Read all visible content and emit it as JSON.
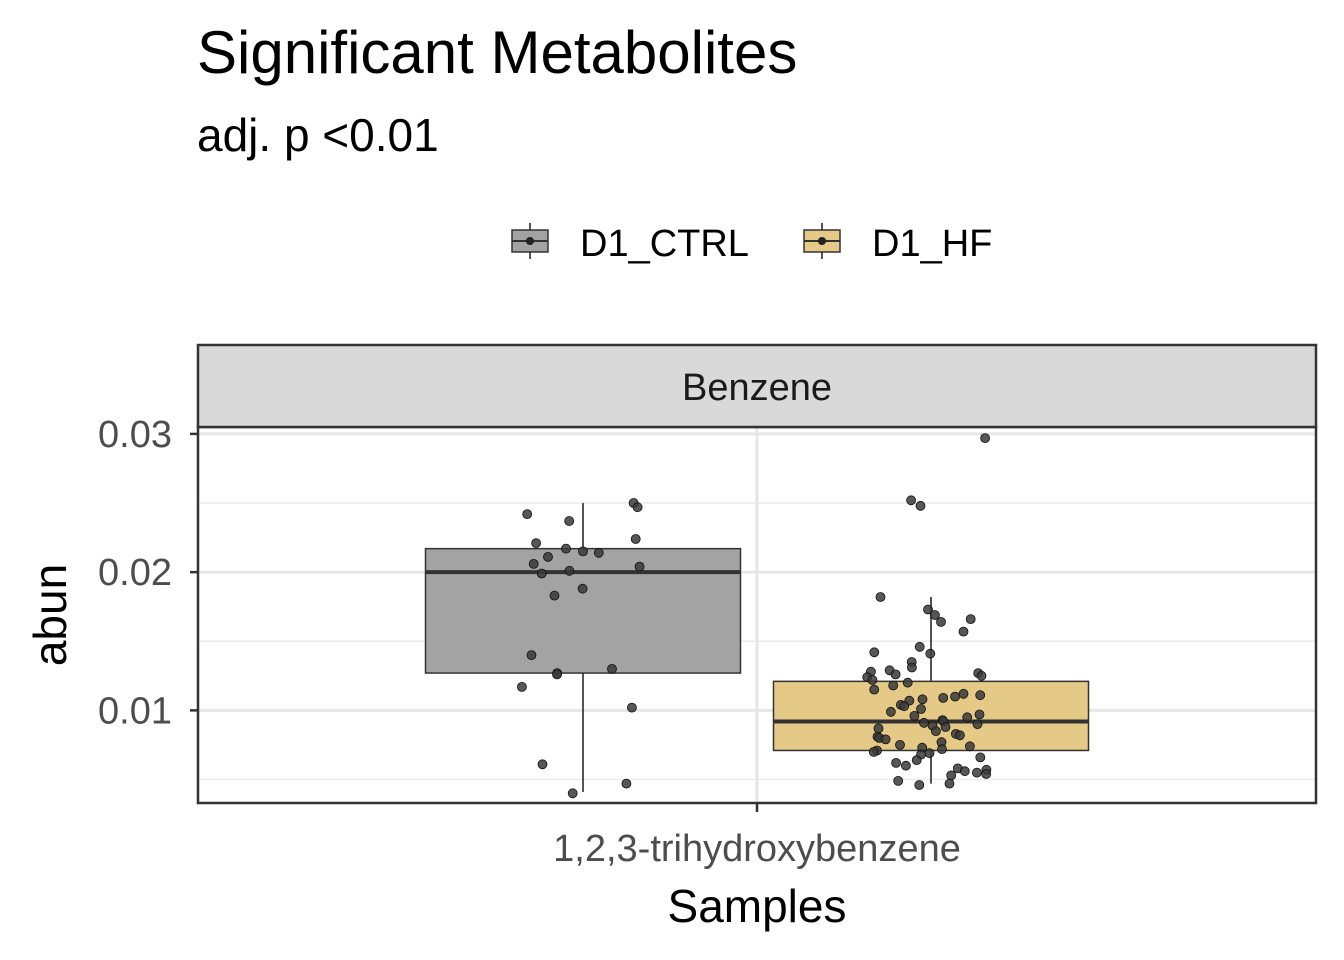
{
  "chart_data": {
    "type": "box",
    "title": "Significant Metabolites",
    "subtitle": "adj. p <0.01",
    "facet_label": "Benzene",
    "xlabel": "Samples",
    "ylabel": "abun",
    "categories": [
      "1,2,3-trihydroxybenzene"
    ],
    "y_ticks": [
      0.01,
      0.02,
      0.03
    ],
    "ylim": [
      0.0033,
      0.0305
    ],
    "grid": true,
    "legend_position": "top",
    "series": [
      {
        "name": "D1_CTRL",
        "color": "#a3a3a3",
        "box": {
          "whisker_low": 0.0041,
          "q1": 0.0127,
          "median": 0.02,
          "q3": 0.0217,
          "whisker_high": 0.025
        },
        "points": [
          0.025,
          0.0247,
          0.0242,
          0.0237,
          0.0224,
          0.0221,
          0.0217,
          0.0215,
          0.0214,
          0.0211,
          0.0206,
          0.0204,
          0.0201,
          0.0199,
          0.0188,
          0.0183,
          0.014,
          0.013,
          0.0127,
          0.0126,
          0.0117,
          0.0102,
          0.0061,
          0.0047,
          0.004
        ]
      },
      {
        "name": "D1_HF",
        "color": "#e5c987",
        "box": {
          "whisker_low": 0.0047,
          "q1": 0.0071,
          "median": 0.0092,
          "q3": 0.0121,
          "whisker_high": 0.0182
        },
        "points": [
          0.0297,
          0.0252,
          0.0248,
          0.0182,
          0.0173,
          0.0169,
          0.0166,
          0.0164,
          0.0157,
          0.0146,
          0.0142,
          0.0141,
          0.0135,
          0.0131,
          0.0129,
          0.0128,
          0.0127,
          0.0126,
          0.0125,
          0.0124,
          0.0122,
          0.012,
          0.0118,
          0.0115,
          0.0112,
          0.0111,
          0.011,
          0.0109,
          0.0108,
          0.0107,
          0.0104,
          0.0103,
          0.0101,
          0.0099,
          0.0097,
          0.0096,
          0.0095,
          0.0093,
          0.0092,
          0.0091,
          0.009,
          0.0089,
          0.0088,
          0.0087,
          0.0085,
          0.0083,
          0.0082,
          0.0081,
          0.008,
          0.0079,
          0.0077,
          0.0075,
          0.0074,
          0.0073,
          0.0072,
          0.0071,
          0.007,
          0.0069,
          0.0068,
          0.0066,
          0.0064,
          0.0062,
          0.006,
          0.0058,
          0.0057,
          0.0056,
          0.0055,
          0.0054,
          0.0053,
          0.0049,
          0.0047,
          0.0046
        ]
      }
    ]
  }
}
